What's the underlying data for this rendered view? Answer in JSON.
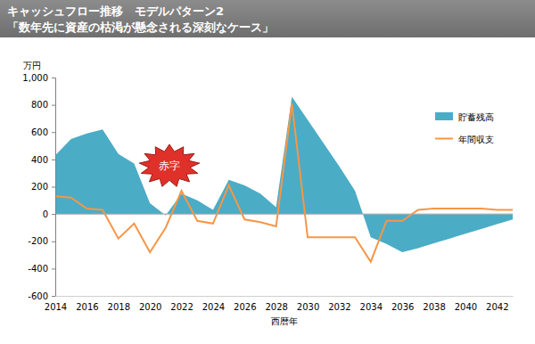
{
  "chart_data": {
    "type": "area",
    "title": "キャッシュフロー推移　モデルパターン2",
    "subtitle": "「数年先に資産の枯渇が懸念される深刻なケース」",
    "y_label": "万円",
    "x_label": "西暦年",
    "annotations": [
      {
        "text": "赤字"
      }
    ],
    "x": [
      2014,
      2015,
      2016,
      2017,
      2018,
      2019,
      2020,
      2021,
      2022,
      2023,
      2024,
      2025,
      2026,
      2027,
      2028,
      2029,
      2030,
      2031,
      2032,
      2033,
      2034,
      2035,
      2036,
      2037,
      2038,
      2039,
      2040,
      2041,
      2042,
      2043
    ],
    "series": [
      {
        "name": "貯蓄残高",
        "type": "area",
        "color": "#4bacc6",
        "values": [
          430,
          550,
          590,
          620,
          440,
          370,
          80,
          -10,
          150,
          100,
          30,
          250,
          210,
          150,
          50,
          860,
          690,
          520,
          350,
          170,
          -170,
          -220,
          -280,
          -250,
          -215,
          -180,
          -145,
          -110,
          -75,
          -40
        ]
      },
      {
        "name": "年間収支",
        "type": "line",
        "color": "#f79646",
        "values": [
          130,
          120,
          40,
          30,
          -180,
          -70,
          -280,
          -100,
          170,
          -50,
          -70,
          210,
          -40,
          -60,
          -90,
          810,
          -170,
          -170,
          -170,
          -170,
          -350,
          -50,
          -50,
          30,
          40,
          40,
          40,
          40,
          30,
          30
        ]
      }
    ],
    "xlim": [
      2014,
      2043
    ],
    "xticks": [
      2014,
      2016,
      2018,
      2020,
      2022,
      2024,
      2026,
      2028,
      2030,
      2032,
      2034,
      2036,
      2038,
      2040,
      2042
    ],
    "ylim": [
      -600,
      1000
    ],
    "yticks": [
      -600,
      -400,
      -200,
      0,
      200,
      400,
      600,
      800,
      {
        "value": 1000,
        "label": "1,000"
      }
    ],
    "grid": false,
    "legend": "right"
  }
}
